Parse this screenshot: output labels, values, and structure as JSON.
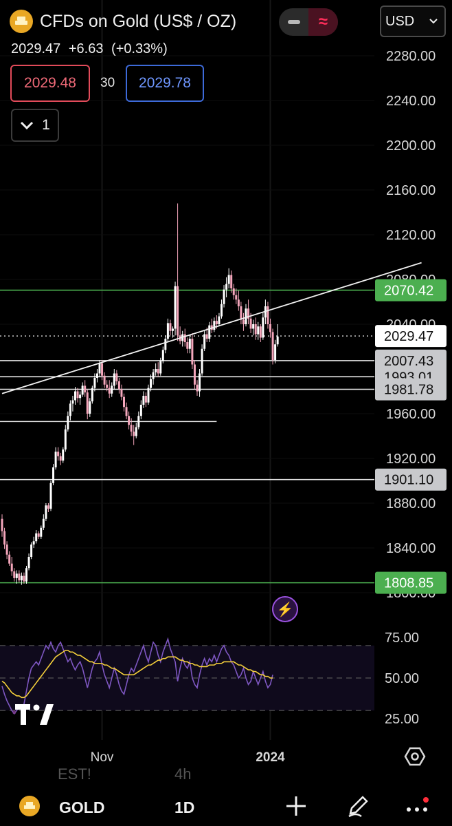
{
  "header": {
    "symbol_title": "CFDs on Gold (US$ / OZ)",
    "last_price": "2029.47",
    "change": "+6.63",
    "change_pct": "(+0.33%)",
    "sell_price": "2029.48",
    "spread": "30",
    "buy_price": "2029.78",
    "collapse_count": "1",
    "currency": "USD"
  },
  "colors": {
    "up": "#ffffff",
    "down": "#f4a6bb",
    "support_green": "#4caf50",
    "label_green": "#4caf50",
    "label_grey": "#c8c9cc",
    "rsi_line": "#7e57c2",
    "rsi_ma": "#f5d03b",
    "sell": "#e24b5a",
    "buy": "#3d6ad9"
  },
  "icons": {
    "logo": "gold-bars-icon",
    "collapse": "chevron-down-icon",
    "minus": "minus-icon",
    "waves": "waves-icon",
    "lightning": "lightning-icon",
    "settings": "hexagon-settings-icon",
    "add": "plus-icon",
    "draw": "pencil-icon",
    "more": "more-dots-icon"
  },
  "chart_data": {
    "type": "candlestick",
    "price_axis": {
      "ticks": [
        2280,
        2240,
        2200,
        2160,
        2120,
        2080,
        2040,
        1960,
        1920,
        1880,
        1840,
        1800
      ],
      "tick_labels": [
        "2280.00",
        "2240.00",
        "2200.00",
        "2160.00",
        "2120.00",
        "2080.00",
        "2040.00",
        "1960.00",
        "1920.00",
        "1880.00",
        "1840.00",
        "1800.00"
      ],
      "range": [
        1790,
        2295
      ]
    },
    "last_price": {
      "value": 2029.47,
      "label": "2029.47"
    },
    "horizontal_lines": [
      {
        "value": 2070.42,
        "label": "2070.42",
        "color": "green"
      },
      {
        "value": 2007.43,
        "label": "2007.43",
        "color": "grey"
      },
      {
        "value": 1993.01,
        "label": "1993.01",
        "color": "grey"
      },
      {
        "value": 1981.78,
        "label": "1981.78",
        "color": "grey"
      },
      {
        "value": 1901.1,
        "label": "1901.10",
        "color": "grey"
      },
      {
        "value": 1808.85,
        "label": "1808.85",
        "color": "green"
      },
      {
        "value": 1953,
        "label": "",
        "color": "white",
        "end_index": 88
      }
    ],
    "trendline": {
      "from": {
        "index": 0,
        "value": 1978
      },
      "to": {
        "index": 172,
        "value": 2095
      }
    },
    "time_axis": {
      "labels": [
        {
          "text": "Nov",
          "index": 41
        },
        {
          "text": "2024",
          "index": 110
        }
      ]
    },
    "candles": [
      {
        "o": 1866,
        "h": 1870,
        "l": 1850,
        "c": 1855
      },
      {
        "o": 1855,
        "h": 1858,
        "l": 1839,
        "c": 1843
      },
      {
        "o": 1843,
        "h": 1846,
        "l": 1830,
        "c": 1834
      },
      {
        "o": 1834,
        "h": 1837,
        "l": 1824,
        "c": 1826
      },
      {
        "o": 1826,
        "h": 1832,
        "l": 1815,
        "c": 1819
      },
      {
        "o": 1819,
        "h": 1822,
        "l": 1810,
        "c": 1813
      },
      {
        "o": 1813,
        "h": 1820,
        "l": 1808,
        "c": 1817
      },
      {
        "o": 1817,
        "h": 1820,
        "l": 1809,
        "c": 1811
      },
      {
        "o": 1811,
        "h": 1818,
        "l": 1807,
        "c": 1815
      },
      {
        "o": 1815,
        "h": 1818,
        "l": 1808,
        "c": 1810
      },
      {
        "o": 1810,
        "h": 1824,
        "l": 1808,
        "c": 1822
      },
      {
        "o": 1822,
        "h": 1835,
        "l": 1820,
        "c": 1832
      },
      {
        "o": 1832,
        "h": 1845,
        "l": 1830,
        "c": 1843
      },
      {
        "o": 1843,
        "h": 1850,
        "l": 1840,
        "c": 1846
      },
      {
        "o": 1846,
        "h": 1856,
        "l": 1844,
        "c": 1853
      },
      {
        "o": 1853,
        "h": 1855,
        "l": 1848,
        "c": 1850
      },
      {
        "o": 1850,
        "h": 1860,
        "l": 1848,
        "c": 1858
      },
      {
        "o": 1858,
        "h": 1870,
        "l": 1856,
        "c": 1866
      },
      {
        "o": 1866,
        "h": 1880,
        "l": 1864,
        "c": 1878
      },
      {
        "o": 1878,
        "h": 1880,
        "l": 1872,
        "c": 1875
      },
      {
        "o": 1875,
        "h": 1900,
        "l": 1873,
        "c": 1898
      },
      {
        "o": 1898,
        "h": 1915,
        "l": 1896,
        "c": 1912
      },
      {
        "o": 1912,
        "h": 1930,
        "l": 1910,
        "c": 1926
      },
      {
        "o": 1926,
        "h": 1930,
        "l": 1918,
        "c": 1922
      },
      {
        "o": 1922,
        "h": 1925,
        "l": 1914,
        "c": 1918
      },
      {
        "o": 1918,
        "h": 1930,
        "l": 1916,
        "c": 1928
      },
      {
        "o": 1928,
        "h": 1950,
        "l": 1926,
        "c": 1946
      },
      {
        "o": 1946,
        "h": 1962,
        "l": 1944,
        "c": 1958
      },
      {
        "o": 1958,
        "h": 1972,
        "l": 1954,
        "c": 1969
      },
      {
        "o": 1969,
        "h": 1976,
        "l": 1962,
        "c": 1972
      },
      {
        "o": 1972,
        "h": 1984,
        "l": 1968,
        "c": 1980
      },
      {
        "o": 1980,
        "h": 1983,
        "l": 1970,
        "c": 1974
      },
      {
        "o": 1974,
        "h": 1980,
        "l": 1968,
        "c": 1977
      },
      {
        "o": 1977,
        "h": 1988,
        "l": 1975,
        "c": 1985
      },
      {
        "o": 1985,
        "h": 1990,
        "l": 1975,
        "c": 1979
      },
      {
        "o": 1979,
        "h": 1982,
        "l": 1955,
        "c": 1960
      },
      {
        "o": 1960,
        "h": 1974,
        "l": 1957,
        "c": 1971
      },
      {
        "o": 1971,
        "h": 1985,
        "l": 1969,
        "c": 1983
      },
      {
        "o": 1983,
        "h": 1996,
        "l": 1980,
        "c": 1992
      },
      {
        "o": 1992,
        "h": 2000,
        "l": 1988,
        "c": 1996
      },
      {
        "o": 1996,
        "h": 2008,
        "l": 1993,
        "c": 2005
      },
      {
        "o": 2005,
        "h": 2008,
        "l": 1990,
        "c": 1994
      },
      {
        "o": 1994,
        "h": 1997,
        "l": 1983,
        "c": 1986
      },
      {
        "o": 1986,
        "h": 1990,
        "l": 1980,
        "c": 1983
      },
      {
        "o": 1983,
        "h": 1990,
        "l": 1974,
        "c": 1978
      },
      {
        "o": 1978,
        "h": 1988,
        "l": 1975,
        "c": 1985
      },
      {
        "o": 1985,
        "h": 2000,
        "l": 1982,
        "c": 1996
      },
      {
        "o": 1996,
        "h": 1999,
        "l": 1986,
        "c": 1989
      },
      {
        "o": 1989,
        "h": 1992,
        "l": 1978,
        "c": 1982
      },
      {
        "o": 1982,
        "h": 1986,
        "l": 1972,
        "c": 1975
      },
      {
        "o": 1975,
        "h": 1978,
        "l": 1962,
        "c": 1966
      },
      {
        "o": 1966,
        "h": 1970,
        "l": 1955,
        "c": 1958
      },
      {
        "o": 1958,
        "h": 1962,
        "l": 1946,
        "c": 1950
      },
      {
        "o": 1950,
        "h": 1956,
        "l": 1940,
        "c": 1944
      },
      {
        "o": 1944,
        "h": 1950,
        "l": 1932,
        "c": 1940
      },
      {
        "o": 1940,
        "h": 1952,
        "l": 1938,
        "c": 1948
      },
      {
        "o": 1948,
        "h": 1962,
        "l": 1946,
        "c": 1958
      },
      {
        "o": 1958,
        "h": 1972,
        "l": 1955,
        "c": 1968
      },
      {
        "o": 1968,
        "h": 1980,
        "l": 1965,
        "c": 1976
      },
      {
        "o": 1976,
        "h": 1979,
        "l": 1966,
        "c": 1970
      },
      {
        "o": 1970,
        "h": 1986,
        "l": 1968,
        "c": 1983
      },
      {
        "o": 1983,
        "h": 1995,
        "l": 1980,
        "c": 1991
      },
      {
        "o": 1991,
        "h": 2000,
        "l": 1986,
        "c": 1997
      },
      {
        "o": 1997,
        "h": 2005,
        "l": 1994,
        "c": 2000
      },
      {
        "o": 2000,
        "h": 2006,
        "l": 1993,
        "c": 1996
      },
      {
        "o": 1996,
        "h": 2010,
        "l": 1994,
        "c": 2007
      },
      {
        "o": 2007,
        "h": 2020,
        "l": 2005,
        "c": 2017
      },
      {
        "o": 2017,
        "h": 2030,
        "l": 2014,
        "c": 2027
      },
      {
        "o": 2027,
        "h": 2045,
        "l": 2024,
        "c": 2041
      },
      {
        "o": 2041,
        "h": 2044,
        "l": 2030,
        "c": 2034
      },
      {
        "o": 2034,
        "h": 2038,
        "l": 2028,
        "c": 2036
      },
      {
        "o": 2036,
        "h": 2078,
        "l": 2030,
        "c": 2074
      },
      {
        "o": 2074,
        "h": 2148,
        "l": 2025,
        "c": 2030
      },
      {
        "o": 2030,
        "h": 2038,
        "l": 2022,
        "c": 2025
      },
      {
        "o": 2025,
        "h": 2034,
        "l": 2020,
        "c": 2031
      },
      {
        "o": 2031,
        "h": 2036,
        "l": 2020,
        "c": 2024
      },
      {
        "o": 2024,
        "h": 2028,
        "l": 2014,
        "c": 2018
      },
      {
        "o": 2018,
        "h": 2030,
        "l": 2014,
        "c": 2027
      },
      {
        "o": 2027,
        "h": 2032,
        "l": 2000,
        "c": 2004
      },
      {
        "o": 2004,
        "h": 2008,
        "l": 1982,
        "c": 1986
      },
      {
        "o": 1986,
        "h": 1990,
        "l": 1976,
        "c": 1980
      },
      {
        "o": 1980,
        "h": 2000,
        "l": 1975,
        "c": 1996
      },
      {
        "o": 1996,
        "h": 2022,
        "l": 1994,
        "c": 2018
      },
      {
        "o": 2018,
        "h": 2034,
        "l": 2016,
        "c": 2031
      },
      {
        "o": 2031,
        "h": 2037,
        "l": 2024,
        "c": 2027
      },
      {
        "o": 2027,
        "h": 2042,
        "l": 2024,
        "c": 2039
      },
      {
        "o": 2039,
        "h": 2045,
        "l": 2032,
        "c": 2035
      },
      {
        "o": 2035,
        "h": 2046,
        "l": 2033,
        "c": 2043
      },
      {
        "o": 2043,
        "h": 2048,
        "l": 2036,
        "c": 2040
      },
      {
        "o": 2040,
        "h": 2050,
        "l": 2038,
        "c": 2047
      },
      {
        "o": 2047,
        "h": 2062,
        "l": 2045,
        "c": 2058
      },
      {
        "o": 2058,
        "h": 2075,
        "l": 2055,
        "c": 2071
      },
      {
        "o": 2071,
        "h": 2082,
        "l": 2064,
        "c": 2076
      },
      {
        "o": 2076,
        "h": 2090,
        "l": 2072,
        "c": 2084
      },
      {
        "o": 2084,
        "h": 2088,
        "l": 2068,
        "c": 2072
      },
      {
        "o": 2072,
        "h": 2076,
        "l": 2062,
        "c": 2066
      },
      {
        "o": 2066,
        "h": 2072,
        "l": 2058,
        "c": 2062
      },
      {
        "o": 2062,
        "h": 2070,
        "l": 2052,
        "c": 2056
      },
      {
        "o": 2056,
        "h": 2060,
        "l": 2040,
        "c": 2044
      },
      {
        "o": 2044,
        "h": 2050,
        "l": 2034,
        "c": 2040
      },
      {
        "o": 2040,
        "h": 2058,
        "l": 2038,
        "c": 2054
      },
      {
        "o": 2054,
        "h": 2062,
        "l": 2040,
        "c": 2045
      },
      {
        "o": 2045,
        "h": 2050,
        "l": 2032,
        "c": 2036
      },
      {
        "o": 2036,
        "h": 2044,
        "l": 2030,
        "c": 2040
      },
      {
        "o": 2040,
        "h": 2046,
        "l": 2026,
        "c": 2031
      },
      {
        "o": 2031,
        "h": 2042,
        "l": 2026,
        "c": 2038
      },
      {
        "o": 2038,
        "h": 2040,
        "l": 2024,
        "c": 2028
      },
      {
        "o": 2028,
        "h": 2050,
        "l": 2026,
        "c": 2046
      },
      {
        "o": 2046,
        "h": 2062,
        "l": 2040,
        "c": 2056
      },
      {
        "o": 2056,
        "h": 2060,
        "l": 2036,
        "c": 2040
      },
      {
        "o": 2040,
        "h": 2045,
        "l": 2028,
        "c": 2033
      },
      {
        "o": 2033,
        "h": 2036,
        "l": 2004,
        "c": 2008
      },
      {
        "o": 2008,
        "h": 2026,
        "l": 2005,
        "c": 2022
      },
      {
        "o": 2022,
        "h": 2040,
        "l": 2020,
        "c": 2029
      }
    ],
    "rsi": {
      "axis": {
        "ticks": [
          75,
          50,
          25
        ],
        "tick_labels": [
          "75.00",
          "50.00",
          "25.00"
        ],
        "range": [
          20,
          80
        ]
      },
      "bands": {
        "upper": 70,
        "mid": 50,
        "lower": 30
      },
      "values": [
        45,
        40,
        36,
        33,
        30,
        28,
        30,
        32,
        30,
        34,
        42,
        50,
        56,
        58,
        60,
        58,
        62,
        66,
        70,
        68,
        72,
        68,
        66,
        70,
        72,
        68,
        64,
        60,
        62,
        58,
        55,
        58,
        60,
        56,
        50,
        44,
        50,
        56,
        60,
        62,
        66,
        58,
        52,
        48,
        44,
        50,
        56,
        52,
        46,
        42,
        40,
        46,
        52,
        56,
        54,
        58,
        62,
        66,
        70,
        64,
        60,
        66,
        72,
        70,
        64,
        60,
        66,
        70,
        74,
        68,
        64,
        60,
        48,
        56,
        62,
        58,
        56,
        60,
        50,
        46,
        44,
        52,
        58,
        62,
        58,
        62,
        60,
        64,
        60,
        64,
        68,
        70,
        66,
        64,
        60,
        58,
        54,
        50,
        52,
        56,
        50,
        46,
        48,
        54,
        50,
        46,
        50,
        54,
        48,
        44,
        46,
        52
      ],
      "ma": [
        48,
        47,
        45,
        43,
        41,
        40,
        39,
        39,
        38,
        38,
        39,
        41,
        43,
        45,
        47,
        49,
        51,
        53,
        55,
        57,
        59,
        61,
        63,
        64,
        65,
        66,
        67,
        67,
        66,
        66,
        65,
        64,
        64,
        63,
        62,
        61,
        60,
        60,
        59,
        59,
        59,
        59,
        58,
        58,
        57,
        56,
        56,
        55,
        54,
        53,
        52,
        52,
        52,
        52,
        52,
        53,
        54,
        55,
        56,
        57,
        58,
        58,
        59,
        60,
        61,
        61,
        62,
        62,
        63,
        63,
        63,
        63,
        62,
        61,
        61,
        60,
        60,
        59,
        59,
        58,
        58,
        57,
        57,
        57,
        57,
        58,
        58,
        58,
        59,
        59,
        59,
        60,
        60,
        60,
        60,
        60,
        59,
        58,
        58,
        57,
        56,
        55,
        55,
        54,
        54,
        53,
        52,
        52,
        51,
        51,
        50,
        50
      ]
    }
  },
  "toolbar": {
    "symbol": "GOLD",
    "interval": "1D",
    "ghost_left": "EST!",
    "ghost_right": "4h"
  }
}
